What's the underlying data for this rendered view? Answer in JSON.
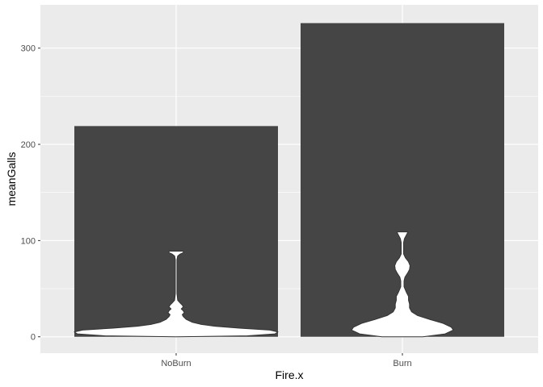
{
  "chart_data": {
    "type": "bar",
    "title": "",
    "xlabel": "Fire.x",
    "ylabel": "meanGalls",
    "categories": [
      "NoBurn",
      "Burn"
    ],
    "values": [
      219,
      326
    ],
    "ylim": [
      -17,
      345
    ],
    "yticks": [
      0,
      100,
      200,
      300
    ],
    "ytick_labels": [
      "0",
      "100",
      "200",
      "300"
    ],
    "grid": true,
    "overlay": {
      "type": "violin",
      "series": [
        {
          "category": "NoBurn",
          "range": [
            0,
            89
          ],
          "profile": [
            [
              0,
              0.0
            ],
            [
              1,
              0.7
            ],
            [
              3,
              0.97
            ],
            [
              5,
              1.0
            ],
            [
              7,
              0.92
            ],
            [
              9,
              0.62
            ],
            [
              11,
              0.38
            ],
            [
              13,
              0.24
            ],
            [
              15,
              0.16
            ],
            [
              18,
              0.1
            ],
            [
              21,
              0.07
            ],
            [
              23,
              0.06
            ],
            [
              25,
              0.08
            ],
            [
              27,
              0.07
            ],
            [
              29,
              0.05
            ],
            [
              31,
              0.07
            ],
            [
              33,
              0.06
            ],
            [
              35,
              0.04
            ],
            [
              38,
              0.015
            ],
            [
              45,
              0.008
            ],
            [
              60,
              0.008
            ],
            [
              80,
              0.008
            ],
            [
              84,
              0.015
            ],
            [
              86,
              0.04
            ],
            [
              87.5,
              0.07
            ],
            [
              88.5,
              0.07
            ],
            [
              89,
              0.07
            ]
          ]
        },
        {
          "category": "Burn",
          "range": [
            0,
            109
          ],
          "profile": [
            [
              0,
              0.2
            ],
            [
              3,
              0.42
            ],
            [
              7,
              0.5
            ],
            [
              10,
              0.48
            ],
            [
              14,
              0.4
            ],
            [
              18,
              0.27
            ],
            [
              22,
              0.15
            ],
            [
              26,
              0.09
            ],
            [
              30,
              0.07
            ],
            [
              34,
              0.07
            ],
            [
              38,
              0.06
            ],
            [
              42,
              0.06
            ],
            [
              46,
              0.04
            ],
            [
              52,
              0.016
            ],
            [
              58,
              0.016
            ],
            [
              62,
              0.025
            ],
            [
              66,
              0.05
            ],
            [
              70,
              0.07
            ],
            [
              74,
              0.075
            ],
            [
              78,
              0.06
            ],
            [
              82,
              0.03
            ],
            [
              86,
              0.012
            ],
            [
              92,
              0.012
            ],
            [
              98,
              0.012
            ],
            [
              102,
              0.02
            ],
            [
              106,
              0.04
            ],
            [
              108,
              0.05
            ],
            [
              109,
              0.05
            ]
          ]
        }
      ]
    }
  }
}
